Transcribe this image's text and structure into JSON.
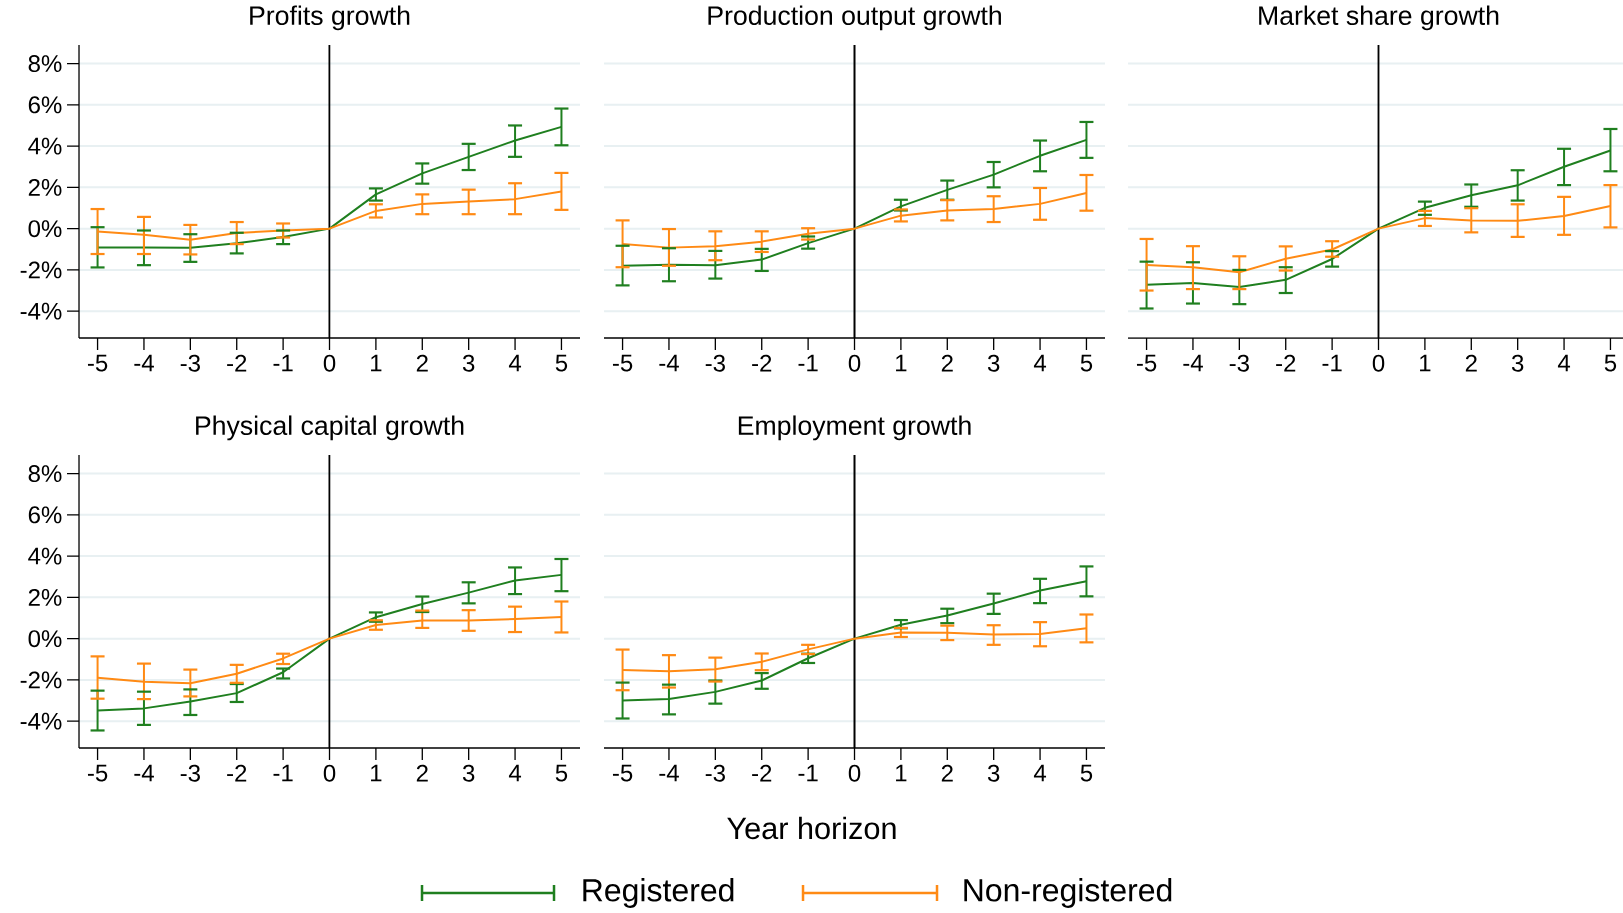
{
  "chart_data": [
    {
      "type": "line",
      "title": "Profits growth",
      "x": [
        -5,
        -4,
        -3,
        -2,
        -1,
        0,
        1,
        2,
        3,
        4,
        5
      ],
      "xlim": [
        -5.4,
        5.4
      ],
      "ylim": [
        -5.3,
        8.9
      ],
      "xticks": [
        -5,
        -4,
        -3,
        -2,
        -1,
        0,
        1,
        2,
        3,
        4,
        5
      ],
      "yticks": [
        {
          "value": -4,
          "label": "-4%"
        },
        {
          "value": -2,
          "label": "-2%"
        },
        {
          "value": 0,
          "label": "0%"
        },
        {
          "value": 2,
          "label": "2%"
        },
        {
          "value": 4,
          "label": "4%"
        },
        {
          "value": 6,
          "label": "6%"
        },
        {
          "value": 8,
          "label": "8%"
        }
      ],
      "grid": "y",
      "ref_lines": [
        {
          "axis": "x",
          "value": 0,
          "color": "#000000"
        }
      ],
      "series": [
        {
          "color": "#1f7f1f",
          "values": [
            -0.91,
            -0.91,
            -0.93,
            -0.71,
            -0.41,
            0,
            1.66,
            2.68,
            3.48,
            4.27,
            4.93
          ],
          "errors": [
            [
              -1.88,
              0.07
            ],
            [
              -1.77,
              -0.09
            ],
            [
              -1.61,
              -0.27
            ],
            [
              -1.2,
              -0.2
            ],
            [
              -0.75,
              -0.09
            ],
            null,
            [
              1.36,
              1.95
            ],
            [
              2.18,
              3.16
            ],
            [
              2.84,
              4.11
            ],
            [
              3.48,
              5.0
            ],
            [
              4.04,
              5.82
            ]
          ]
        },
        {
          "color": "#ff8a14",
          "values": [
            -0.14,
            -0.3,
            -0.54,
            -0.21,
            -0.09,
            0,
            0.86,
            1.2,
            1.32,
            1.43,
            1.8
          ],
          "errors": [
            [
              -1.23,
              0.95
            ],
            [
              -1.23,
              0.57
            ],
            [
              -1.25,
              0.18
            ],
            [
              -0.75,
              0.32
            ],
            [
              -0.43,
              0.25
            ],
            null,
            [
              0.54,
              1.18
            ],
            [
              0.7,
              1.66
            ],
            [
              0.7,
              1.89
            ],
            [
              0.7,
              2.2
            ],
            [
              0.91,
              2.7
            ]
          ]
        }
      ]
    },
    {
      "type": "line",
      "title": "Production output growth",
      "x": [
        -5,
        -4,
        -3,
        -2,
        -1,
        0,
        1,
        2,
        3,
        4,
        5
      ],
      "xlim": [
        -5.4,
        5.4
      ],
      "ylim": [
        -5.3,
        8.9
      ],
      "tick_labels": "x",
      "xticks": [
        -5,
        -4,
        -3,
        -2,
        -1,
        0,
        1,
        2,
        3,
        4,
        5
      ],
      "yticks": [
        {
          "value": -4,
          "label": null
        },
        {
          "value": -2,
          "label": null
        },
        {
          "value": 0,
          "label": null
        },
        {
          "value": 2,
          "label": null
        },
        {
          "value": 4,
          "label": null
        },
        {
          "value": 6,
          "label": null
        },
        {
          "value": 8,
          "label": null
        }
      ],
      "grid": "y",
      "ref_lines": [
        {
          "axis": "x",
          "value": 0,
          "color": "#000000"
        }
      ],
      "series": [
        {
          "color": "#1f7f1f",
          "values": [
            -1.8,
            -1.75,
            -1.77,
            -1.5,
            -0.7,
            0,
            1.08,
            1.88,
            2.62,
            3.53,
            4.3
          ],
          "errors": [
            [
              -2.75,
              -0.83
            ],
            [
              -2.55,
              -0.95
            ],
            [
              -2.42,
              -1.08
            ],
            [
              -2.05,
              -0.98
            ],
            [
              -0.97,
              -0.38
            ],
            null,
            [
              0.88,
              1.4
            ],
            [
              1.4,
              2.33
            ],
            [
              2.0,
              3.23
            ],
            [
              2.78,
              4.27
            ],
            [
              3.43,
              5.17
            ]
          ]
        },
        {
          "color": "#ff8a14",
          "values": [
            -0.75,
            -0.92,
            -0.85,
            -0.63,
            -0.25,
            0,
            0.63,
            0.88,
            0.95,
            1.2,
            1.73
          ],
          "errors": [
            [
              -1.87,
              0.4
            ],
            [
              -1.8,
              -0.02
            ],
            [
              -1.53,
              -0.13
            ],
            [
              -1.13,
              -0.13
            ],
            [
              -0.53,
              0.02
            ],
            null,
            [
              0.35,
              0.93
            ],
            [
              0.4,
              1.38
            ],
            [
              0.32,
              1.57
            ],
            [
              0.43,
              1.97
            ],
            [
              0.87,
              2.6
            ]
          ]
        }
      ]
    },
    {
      "type": "line",
      "title": "Market share growth",
      "x": [
        -5,
        -4,
        -3,
        -2,
        -1,
        0,
        1,
        2,
        3,
        4,
        5
      ],
      "xlim": [
        -5.4,
        5.4
      ],
      "ylim": [
        -5.3,
        8.9
      ],
      "tick_labels": "x",
      "xticks": [
        -5,
        -4,
        -3,
        -2,
        -1,
        0,
        1,
        2,
        3,
        4,
        5
      ],
      "yticks": [
        {
          "value": -4,
          "label": null
        },
        {
          "value": -2,
          "label": null
        },
        {
          "value": 0,
          "label": null
        },
        {
          "value": 2,
          "label": null
        },
        {
          "value": 4,
          "label": null
        },
        {
          "value": 6,
          "label": null
        },
        {
          "value": 8,
          "label": null
        }
      ],
      "grid": "y",
      "ref_lines": [
        {
          "axis": "x",
          "value": 0,
          "color": "#000000"
        }
      ],
      "series": [
        {
          "color": "#1f7f1f",
          "values": [
            -2.72,
            -2.64,
            -2.83,
            -2.48,
            -1.47,
            0,
            1.01,
            1.62,
            2.1,
            3.0,
            3.79
          ],
          "errors": [
            [
              -3.87,
              -1.6
            ],
            [
              -3.63,
              -1.63
            ],
            [
              -3.66,
              -2.0
            ],
            [
              -3.12,
              -1.87
            ],
            [
              -1.84,
              -1.09
            ],
            null,
            [
              0.67,
              1.31
            ],
            [
              1.06,
              2.14
            ],
            [
              1.36,
              2.83
            ],
            [
              2.11,
              3.87
            ],
            [
              2.78,
              4.83
            ]
          ]
        },
        {
          "color": "#ff8a14",
          "values": [
            -1.76,
            -1.87,
            -2.11,
            -1.46,
            -1.01,
            0,
            0.51,
            0.4,
            0.38,
            0.61,
            1.1
          ],
          "errors": [
            [
              -3.0,
              -0.5
            ],
            [
              -2.93,
              -0.85
            ],
            [
              -2.93,
              -1.34
            ],
            [
              -2.03,
              -0.86
            ],
            [
              -1.36,
              -0.61
            ],
            null,
            [
              0.13,
              0.86
            ],
            [
              -0.18,
              0.99
            ],
            [
              -0.4,
              1.18
            ],
            [
              -0.3,
              1.54
            ],
            [
              0.06,
              2.11
            ]
          ]
        }
      ]
    },
    {
      "type": "line",
      "title": "Physical capital growth",
      "xlabel": "Year horizon",
      "legend": "bottom",
      "x": [
        -5,
        -4,
        -3,
        -2,
        -1,
        0,
        1,
        2,
        3,
        4,
        5
      ],
      "xlim": [
        -5.4,
        5.4
      ],
      "ylim": [
        -5.3,
        8.9
      ],
      "xticks": [
        -5,
        -4,
        -3,
        -2,
        -1,
        0,
        1,
        2,
        3,
        4,
        5
      ],
      "yticks": [
        {
          "value": -4,
          "label": "-4%"
        },
        {
          "value": -2,
          "label": "-2%"
        },
        {
          "value": 0,
          "label": "0%"
        },
        {
          "value": 2,
          "label": "2%"
        },
        {
          "value": 4,
          "label": "4%"
        },
        {
          "value": 6,
          "label": "6%"
        },
        {
          "value": 8,
          "label": "8%"
        }
      ],
      "grid": "y",
      "ref_lines": [
        {
          "axis": "x",
          "value": 0,
          "color": "#000000"
        }
      ],
      "series": [
        {
          "name": "Registered",
          "color": "#1f7f1f",
          "values": [
            -3.48,
            -3.38,
            -3.05,
            -2.64,
            -1.63,
            0,
            1.04,
            1.68,
            2.23,
            2.82,
            3.09
          ],
          "errors": [
            [
              -4.45,
              -2.52
            ],
            [
              -4.18,
              -2.57
            ],
            [
              -3.7,
              -2.46
            ],
            [
              -3.07,
              -2.2
            ],
            [
              -1.93,
              -1.45
            ],
            null,
            [
              0.82,
              1.27
            ],
            [
              1.29,
              2.04
            ],
            [
              1.71,
              2.73
            ],
            [
              2.16,
              3.45
            ],
            [
              2.3,
              3.86
            ]
          ]
        },
        {
          "name": "Non-registered",
          "color": "#ff8a14",
          "values": [
            -1.89,
            -2.09,
            -2.16,
            -1.7,
            -0.96,
            0,
            0.66,
            0.88,
            0.88,
            0.95,
            1.05
          ],
          "errors": [
            [
              -2.91,
              -0.86
            ],
            [
              -2.93,
              -1.21
            ],
            [
              -2.8,
              -1.5
            ],
            [
              -2.14,
              -1.27
            ],
            [
              -1.23,
              -0.73
            ],
            null,
            [
              0.43,
              0.89
            ],
            [
              0.52,
              1.36
            ],
            [
              0.38,
              1.38
            ],
            [
              0.32,
              1.55
            ],
            [
              0.3,
              1.8
            ]
          ]
        }
      ]
    },
    {
      "type": "line",
      "title": "Employment growth",
      "x": [
        -5,
        -4,
        -3,
        -2,
        -1,
        0,
        1,
        2,
        3,
        4,
        5
      ],
      "xlim": [
        -5.4,
        5.4
      ],
      "ylim": [
        -5.3,
        8.9
      ],
      "tick_labels": "x",
      "xticks": [
        -5,
        -4,
        -3,
        -2,
        -1,
        0,
        1,
        2,
        3,
        4,
        5
      ],
      "yticks": [
        {
          "value": -4,
          "label": null
        },
        {
          "value": -2,
          "label": null
        },
        {
          "value": 0,
          "label": null
        },
        {
          "value": 2,
          "label": null
        },
        {
          "value": 4,
          "label": null
        },
        {
          "value": 6,
          "label": null
        },
        {
          "value": 8,
          "label": null
        }
      ],
      "grid": "y",
      "ref_lines": [
        {
          "axis": "x",
          "value": 0,
          "color": "#000000"
        }
      ],
      "series": [
        {
          "color": "#1f7f1f",
          "values": [
            -3.0,
            -2.93,
            -2.58,
            -2.03,
            -0.95,
            0,
            0.67,
            1.12,
            1.7,
            2.33,
            2.78
          ],
          "errors": [
            [
              -3.87,
              -2.13
            ],
            [
              -3.67,
              -2.23
            ],
            [
              -3.15,
              -2.03
            ],
            [
              -2.43,
              -1.67
            ],
            [
              -1.18,
              -0.73
            ],
            null,
            [
              0.5,
              0.9
            ],
            [
              0.75,
              1.45
            ],
            [
              1.2,
              2.18
            ],
            [
              1.72,
              2.9
            ],
            [
              2.05,
              3.5
            ]
          ]
        },
        {
          "color": "#ff8a14",
          "values": [
            -1.52,
            -1.58,
            -1.48,
            -1.12,
            -0.52,
            0,
            0.3,
            0.28,
            0.2,
            0.22,
            0.5
          ],
          "errors": [
            [
              -2.5,
              -0.53
            ],
            [
              -2.37,
              -0.8
            ],
            [
              -2.08,
              -0.92
            ],
            [
              -1.53,
              -0.72
            ],
            [
              -0.75,
              -0.3
            ],
            null,
            [
              0.08,
              0.52
            ],
            [
              -0.07,
              0.63
            ],
            [
              -0.3,
              0.65
            ],
            [
              -0.37,
              0.8
            ],
            [
              -0.18,
              1.17
            ]
          ]
        }
      ]
    }
  ]
}
